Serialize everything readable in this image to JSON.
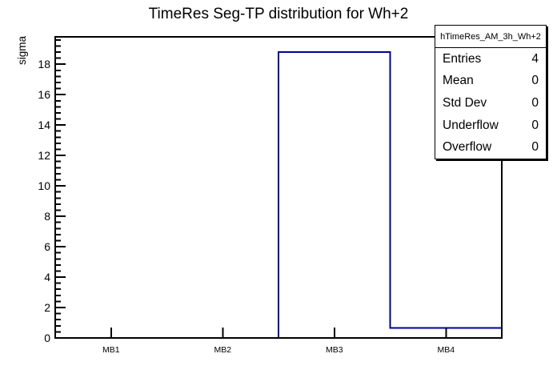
{
  "page": {
    "background": "#ffffff"
  },
  "title": "TimeRes Seg-TP distribution for Wh+2",
  "stats_box": {
    "title": "hTimeRes_AM_3h_Wh+2",
    "rows": [
      {
        "label": "Entries",
        "value": "4"
      },
      {
        "label": "Mean",
        "value": "0"
      },
      {
        "label": "Std Dev",
        "value": "0"
      },
      {
        "label": "Underflow",
        "value": "0"
      },
      {
        "label": "Overflow",
        "value": "0"
      }
    ]
  },
  "chart_data": {
    "type": "bar",
    "subtype": "root-histogram-outline",
    "title": "TimeRes Seg-TP distribution for Wh+2",
    "categories": [
      "MB1",
      "MB2",
      "MB3",
      "MB4"
    ],
    "values": [
      0,
      0,
      18.8,
      0.65
    ],
    "xlabel": "",
    "ylabel": "sigma",
    "ylim": [
      0,
      19.8
    ],
    "y_major_tick_step": 2,
    "y_ticks_labeled": [
      0,
      2,
      4,
      6,
      8,
      10,
      12,
      14,
      16,
      18
    ],
    "y_minor_divisions_per_major": 5,
    "grid": false,
    "legend_position": "none",
    "line_color": "#000099",
    "axis_color": "#000000",
    "text_color": "#000000",
    "background_color": "#ffffff"
  }
}
